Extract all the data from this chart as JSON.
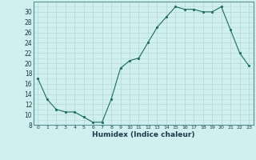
{
  "x": [
    0,
    1,
    2,
    3,
    4,
    5,
    6,
    7,
    8,
    9,
    10,
    11,
    12,
    13,
    14,
    15,
    16,
    17,
    18,
    19,
    20,
    21,
    22,
    23
  ],
  "y": [
    17,
    13,
    11,
    10.5,
    10.5,
    9.5,
    8.5,
    8.5,
    13,
    19,
    20.5,
    21,
    24,
    27,
    29,
    31,
    30.5,
    30.5,
    30,
    30,
    31,
    26.5,
    22,
    19.5
  ],
  "line_color": "#1a6b5a",
  "marker_color": "#1a6b5a",
  "bg_color": "#d0f0f0",
  "grid_color": "#b8dada",
  "xlabel": "Humidex (Indice chaleur)",
  "ylim": [
    8,
    32
  ],
  "xlim": [
    -0.5,
    23.5
  ],
  "yticks": [
    8,
    10,
    12,
    14,
    16,
    18,
    20,
    22,
    24,
    26,
    28,
    30
  ],
  "xticks": [
    0,
    1,
    2,
    3,
    4,
    5,
    6,
    7,
    8,
    9,
    10,
    11,
    12,
    13,
    14,
    15,
    16,
    17,
    18,
    19,
    20,
    21,
    22,
    23
  ]
}
